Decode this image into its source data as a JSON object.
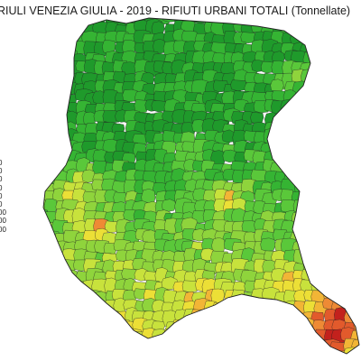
{
  "map": {
    "title": "RIULI VENEZIA GIULIA - 2019 - RIFIUTI URBANI TOTALI (Tonnellate)",
    "legend_labels": [
      "0",
      "0",
      "0",
      "0",
      "0",
      "0",
      "00",
      "00",
      "00"
    ],
    "scale_colors": [
      "#1f9a2b",
      "#35b433",
      "#5ac83a",
      "#8fd43c",
      "#c8e23c",
      "#ecdf36",
      "#f2b536",
      "#ee8a35",
      "#e25a2c",
      "#c3211d"
    ],
    "frontier_color": "#222222"
  }
}
